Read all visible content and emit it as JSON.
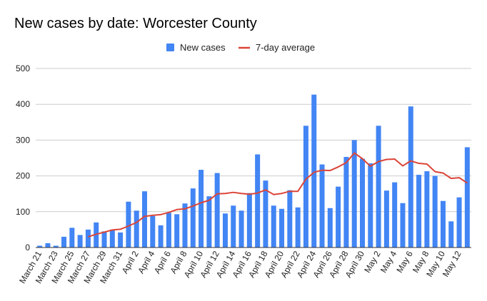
{
  "chart_data": {
    "type": "bar",
    "title": "New cases by date: Worcester County",
    "xlabel": "",
    "ylabel": "",
    "ylim": [
      0,
      500
    ],
    "yticks": [
      0,
      100,
      200,
      300,
      400,
      500
    ],
    "grid": true,
    "legend_position": "top-center",
    "categories": [
      "March 21",
      "March 22",
      "March 23",
      "March 24",
      "March 25",
      "March 26",
      "March 27",
      "March 28",
      "March 29",
      "March 30",
      "March 31",
      "April 1",
      "April 2",
      "April 3",
      "April 4",
      "April 5",
      "April 6",
      "April 7",
      "April 8",
      "April 9",
      "April 10",
      "April 11",
      "April 12",
      "April 13",
      "April 14",
      "April 15",
      "April 16",
      "April 17",
      "April 18",
      "April 19",
      "April 20",
      "April 21",
      "April 22",
      "April 23",
      "April 24",
      "April 25",
      "April 26",
      "April 27",
      "April 28",
      "April 29",
      "April 30",
      "May 1",
      "May 2",
      "May 3",
      "May 4",
      "May 5",
      "May 6",
      "May 7",
      "May 8",
      "May 9",
      "May 10",
      "May 11",
      "May 12",
      "May 13"
    ],
    "x_tick_labels": [
      "March 21",
      "March 23",
      "March 25",
      "March 27",
      "March 29",
      "March 31",
      "April 2",
      "April 4",
      "April 6",
      "April 8",
      "April 10",
      "April 12",
      "April 14",
      "April 16",
      "April 18",
      "April 20",
      "April 22",
      "April 24",
      "April 26",
      "April 28",
      "April 30",
      "May 2",
      "May 4",
      "May 6",
      "May 8",
      "May 10",
      "May 12"
    ],
    "series": [
      {
        "name": "New cases",
        "type": "bar",
        "color": "#4285f4",
        "values": [
          5,
          12,
          5,
          30,
          55,
          35,
          50,
          70,
          45,
          50,
          42,
          128,
          103,
          157,
          88,
          62,
          97,
          93,
          123,
          165,
          217,
          143,
          208,
          95,
          117,
          103,
          152,
          260,
          187,
          117,
          108,
          160,
          112,
          340,
          427,
          232,
          110,
          170,
          253,
          300,
          248,
          235,
          340,
          159,
          182,
          124,
          394,
          203,
          213,
          200,
          130,
          73,
          140,
          280
        ]
      },
      {
        "name": "7-day average",
        "type": "line",
        "color": "#db4437",
        "start_index": 6,
        "values": [
          null,
          null,
          null,
          null,
          null,
          null,
          30,
          37,
          43,
          49,
          51,
          60,
          70,
          87,
          90,
          92,
          98,
          106,
          108,
          116,
          125,
          132,
          150,
          151,
          154,
          151,
          149,
          152,
          161,
          148,
          151,
          157,
          157,
          191,
          210,
          216,
          215,
          225,
          237,
          264,
          248,
          227,
          240,
          246,
          247,
          228,
          242,
          235,
          233,
          212,
          208,
          193,
          195,
          180
        ]
      }
    ]
  }
}
